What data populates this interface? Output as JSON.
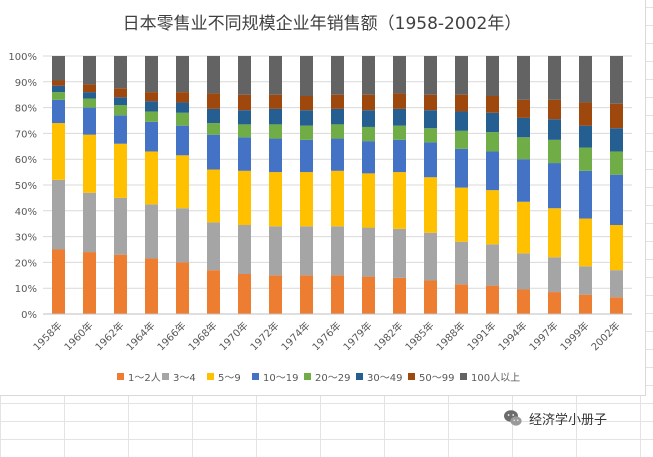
{
  "chart_data": {
    "type": "stacked_bar_percent",
    "title": "日本零售业不同规模企业年销售额（1958-2002年）",
    "xlabel": "",
    "ylabel": "",
    "ylim": [
      0,
      100
    ],
    "yticks": [
      "0%",
      "10%",
      "20%",
      "30%",
      "40%",
      "50%",
      "60%",
      "70%",
      "80%",
      "90%",
      "100%"
    ],
    "categories": [
      "1958年",
      "1960年",
      "1962年",
      "1964年",
      "1966年",
      "1968年",
      "1970年",
      "1972年",
      "1974年",
      "1976年",
      "1979年",
      "1982年",
      "1985年",
      "1988年",
      "1991年",
      "1994年",
      "1997年",
      "1999年",
      "2002年"
    ],
    "legend_position": "bottom",
    "series": [
      {
        "name": "1～2人",
        "color": "#ED7D31",
        "values": [
          25,
          24,
          23,
          21.5,
          20,
          17,
          15.5,
          15,
          15,
          15,
          14.5,
          14,
          13,
          11.5,
          11,
          9.5,
          8.5,
          7.5,
          6.5
        ]
      },
      {
        "name": "3～4",
        "color": "#A5A5A5",
        "values": [
          27,
          23,
          22,
          21,
          21,
          18.5,
          19,
          19,
          19,
          19,
          19,
          19,
          18.5,
          16.5,
          16,
          14,
          13.5,
          11,
          10.5
        ]
      },
      {
        "name": "5～9",
        "color": "#FFC000",
        "values": [
          22,
          22.5,
          21,
          20.5,
          20.5,
          20.5,
          21,
          21,
          21,
          21.5,
          21,
          22,
          21.5,
          21,
          21,
          20,
          19,
          18.5,
          17.5
        ]
      },
      {
        "name": "10～19",
        "color": "#4472C4",
        "values": [
          9,
          10.5,
          11,
          11.5,
          11.5,
          13.5,
          13,
          13,
          12.5,
          12.5,
          12.5,
          12.5,
          13.5,
          15,
          15,
          16.5,
          17.5,
          18.5,
          19.5
        ]
      },
      {
        "name": "20～29",
        "color": "#70AD47",
        "values": [
          3,
          3.5,
          4,
          4,
          5,
          4.5,
          5,
          5.5,
          5.5,
          5.5,
          5.5,
          5.5,
          5.5,
          7,
          7.5,
          8.5,
          9,
          9,
          9
        ]
      },
      {
        "name": "30～49",
        "color": "#255E91",
        "values": [
          2.5,
          2.5,
          3,
          4,
          4,
          5.5,
          5.5,
          6,
          6,
          6,
          6.5,
          6.5,
          7,
          7.5,
          7.5,
          7.5,
          8,
          8.5,
          9
        ]
      },
      {
        "name": "50～99",
        "color": "#9E480E",
        "values": [
          2,
          3,
          3.5,
          3.5,
          4,
          6,
          6,
          5.5,
          5.5,
          5.5,
          6,
          6,
          6,
          6.5,
          6.5,
          7,
          7.5,
          9,
          9.5
        ]
      },
      {
        "name": "100人以上",
        "color": "#636363",
        "values": [
          9.5,
          11,
          12.5,
          14,
          14,
          14.5,
          15,
          15,
          15.5,
          15,
          15,
          14.5,
          15,
          15,
          15.5,
          17,
          17,
          18,
          18.5
        ]
      }
    ]
  },
  "watermark": {
    "text": "经济学小册子",
    "icon": "wechat-icon"
  }
}
